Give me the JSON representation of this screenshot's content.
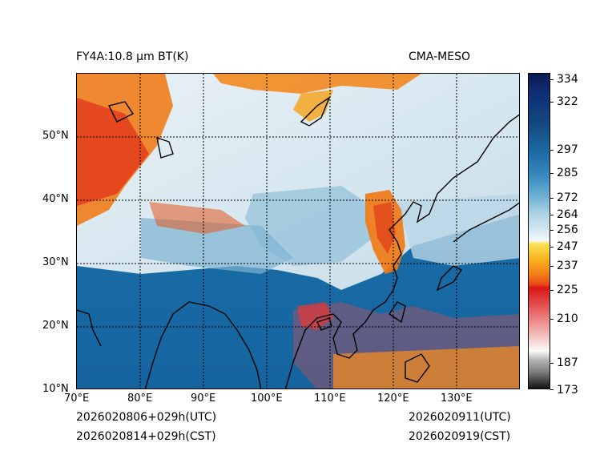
{
  "title_left": "FY4A:10.8 µm BT(K)",
  "title_right": "CMA-MESO",
  "footer": {
    "left_utc": "2026020806+029h(UTC)",
    "left_cst": "2026020814+029h(CST)",
    "right_utc": "2026020911(UTC)",
    "right_cst": "2026020919(CST)"
  },
  "lat_labels": [
    "50°N",
    "40°N",
    "30°N",
    "20°N",
    "10°N"
  ],
  "lon_labels": [
    "70°E",
    "80°E",
    "90°E",
    "100°E",
    "110°E",
    "120°E",
    "130°E"
  ],
  "colorbar_ticks": [
    "334",
    "322",
    "297",
    "285",
    "272",
    "264",
    "256",
    "247",
    "237",
    "225",
    "210",
    "187",
    "173"
  ],
  "colors": {
    "ocean_blue": "#1a6aa6",
    "cloud_light": "#dbeaf2",
    "cold_cloud": "#f08a1e"
  }
}
